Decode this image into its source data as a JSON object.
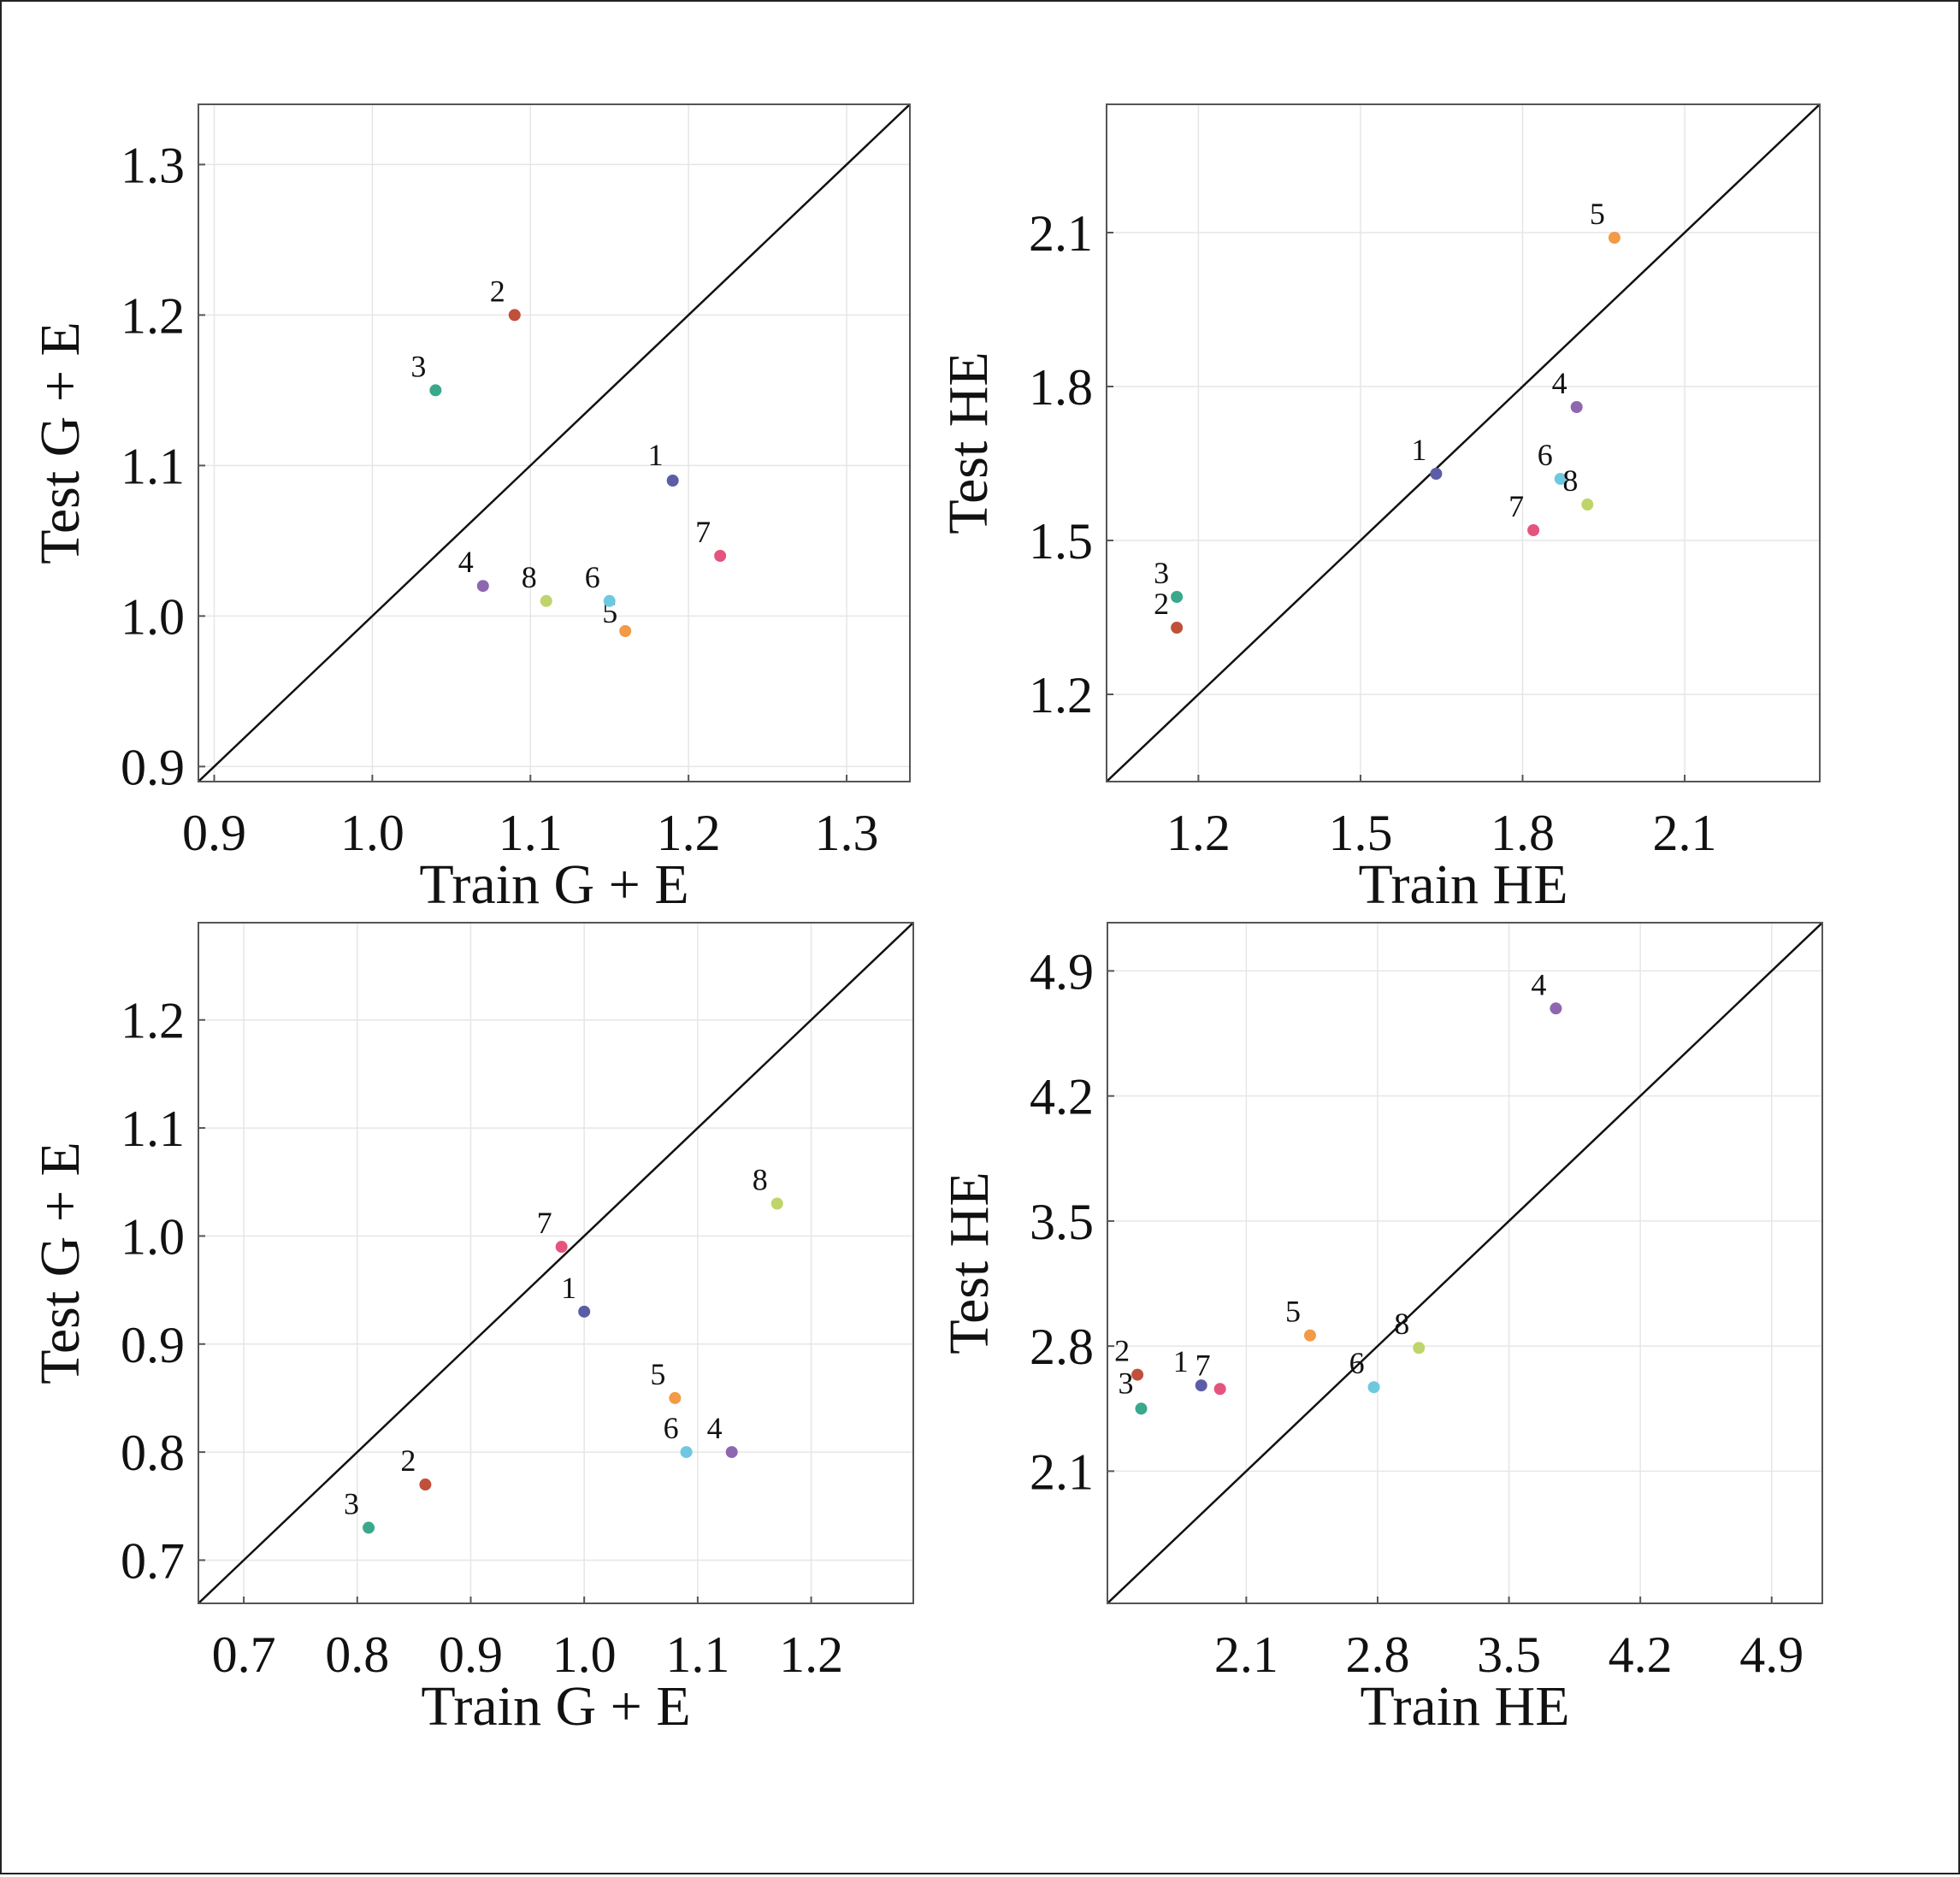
{
  "chart_data": [
    {
      "type": "scatter",
      "xlabel": "Train G + E",
      "ylabel": "Test G + E",
      "xlim": [
        0.89,
        1.34
      ],
      "ylim": [
        0.89,
        1.34
      ],
      "xticks": [
        "0.9",
        "1.0",
        "1.1",
        "1.2",
        "1.3"
      ],
      "yticks": [
        "0.9",
        "1.0",
        "1.1",
        "1.2",
        "1.3"
      ],
      "diagonal": true,
      "grid": true,
      "points": [
        {
          "label": "1",
          "x": 1.19,
          "y": 1.09,
          "color": "#5b5ea6"
        },
        {
          "label": "2",
          "x": 1.09,
          "y": 1.2,
          "color": "#c0503a"
        },
        {
          "label": "3",
          "x": 1.04,
          "y": 1.15,
          "color": "#3aa88c"
        },
        {
          "label": "4",
          "x": 1.07,
          "y": 1.02,
          "color": "#8e67b0"
        },
        {
          "label": "5",
          "x": 1.16,
          "y": 0.99,
          "color": "#f29a45"
        },
        {
          "label": "6",
          "x": 1.15,
          "y": 1.01,
          "color": "#6ec9e0"
        },
        {
          "label": "7",
          "x": 1.22,
          "y": 1.04,
          "color": "#e5547e"
        },
        {
          "label": "8",
          "x": 1.11,
          "y": 1.01,
          "color": "#bfd46a"
        }
      ]
    },
    {
      "type": "scatter",
      "xlabel": "Train HE",
      "ylabel": "Test HE",
      "xlim": [
        1.03,
        2.35
      ],
      "ylim": [
        1.03,
        2.35
      ],
      "xticks": [
        "1.2",
        "1.5",
        "1.8",
        "2.1"
      ],
      "yticks": [
        "1.2",
        "1.5",
        "1.8",
        "2.1"
      ],
      "diagonal": true,
      "grid": true,
      "points": [
        {
          "label": "1",
          "x": 1.64,
          "y": 1.63,
          "color": "#5b5ea6"
        },
        {
          "label": "2",
          "x": 1.16,
          "y": 1.33,
          "color": "#c0503a"
        },
        {
          "label": "3",
          "x": 1.16,
          "y": 1.39,
          "color": "#3aa88c"
        },
        {
          "label": "4",
          "x": 1.9,
          "y": 1.76,
          "color": "#8e67b0"
        },
        {
          "label": "5",
          "x": 1.97,
          "y": 2.09,
          "color": "#f29a45"
        },
        {
          "label": "6",
          "x": 1.87,
          "y": 1.62,
          "color": "#6ec9e0"
        },
        {
          "label": "7",
          "x": 1.82,
          "y": 1.52,
          "color": "#e5547e"
        },
        {
          "label": "8",
          "x": 1.92,
          "y": 1.57,
          "color": "#bfd46a"
        }
      ]
    },
    {
      "type": "scatter",
      "xlabel": "Train G + E",
      "ylabel": "Test G + E",
      "xlim": [
        0.66,
        1.29
      ],
      "ylim": [
        0.66,
        1.29
      ],
      "xticks": [
        "0.7",
        "0.8",
        "0.9",
        "1.0",
        "1.1",
        "1.2"
      ],
      "yticks": [
        "0.7",
        "0.8",
        "0.9",
        "1.0",
        "1.1",
        "1.2"
      ],
      "diagonal": true,
      "grid": true,
      "points": [
        {
          "label": "1",
          "x": 1.0,
          "y": 0.93,
          "color": "#5b5ea6"
        },
        {
          "label": "2",
          "x": 0.86,
          "y": 0.77,
          "color": "#c0503a"
        },
        {
          "label": "3",
          "x": 0.81,
          "y": 0.73,
          "color": "#3aa88c"
        },
        {
          "label": "4",
          "x": 1.13,
          "y": 0.8,
          "color": "#8e67b0"
        },
        {
          "label": "5",
          "x": 1.08,
          "y": 0.85,
          "color": "#f29a45"
        },
        {
          "label": "6",
          "x": 1.09,
          "y": 0.8,
          "color": "#6ec9e0"
        },
        {
          "label": "7",
          "x": 0.98,
          "y": 0.99,
          "color": "#e5547e"
        },
        {
          "label": "8",
          "x": 1.17,
          "y": 1.03,
          "color": "#bfd46a"
        }
      ]
    },
    {
      "type": "scatter",
      "xlabel": "Train HE",
      "ylabel": "Test HE",
      "xlim": [
        1.36,
        5.17
      ],
      "ylim": [
        1.36,
        5.17
      ],
      "xticks": [
        "2.1",
        "2.8",
        "3.5",
        "4.2",
        "4.9"
      ],
      "yticks": [
        "2.1",
        "2.8",
        "3.5",
        "4.2",
        "4.9"
      ],
      "diagonal": true,
      "grid": true,
      "points": [
        {
          "label": "1",
          "x": 1.86,
          "y": 2.58,
          "color": "#5b5ea6"
        },
        {
          "label": "2",
          "x": 1.52,
          "y": 2.64,
          "color": "#c0503a"
        },
        {
          "label": "3",
          "x": 1.54,
          "y": 2.45,
          "color": "#3aa88c"
        },
        {
          "label": "4",
          "x": 3.75,
          "y": 4.69,
          "color": "#8e67b0"
        },
        {
          "label": "5",
          "x": 2.44,
          "y": 2.86,
          "color": "#f29a45"
        },
        {
          "label": "6",
          "x": 2.78,
          "y": 2.57,
          "color": "#6ec9e0"
        },
        {
          "label": "7",
          "x": 1.96,
          "y": 2.56,
          "color": "#e5547e"
        },
        {
          "label": "8",
          "x": 3.02,
          "y": 2.79,
          "color": "#bfd46a"
        }
      ]
    }
  ]
}
